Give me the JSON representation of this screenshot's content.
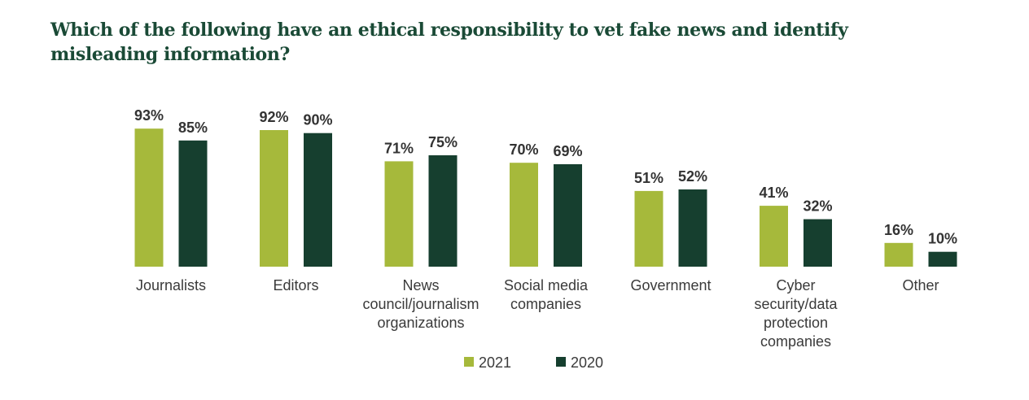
{
  "chart_data": {
    "type": "bar",
    "title": "Which of the following have an ethical responsibility to vet fake news and identify misleading information?",
    "categories": [
      [
        "Journalists"
      ],
      [
        "Editors"
      ],
      [
        "News",
        "council/journalism",
        "organizations"
      ],
      [
        "Social media",
        "companies"
      ],
      [
        "Government"
      ],
      [
        "Cyber",
        "security/data",
        "protection",
        "companies"
      ],
      [
        "Other"
      ]
    ],
    "series": [
      {
        "name": "2021",
        "color": "#a6b93b",
        "values": [
          93,
          92,
          71,
          70,
          51,
          41,
          16
        ],
        "labels": [
          "93%",
          "92%",
          "71%",
          "70%",
          "51%",
          "41%",
          "16%"
        ]
      },
      {
        "name": "2020",
        "color": "#163f2f",
        "values": [
          85,
          90,
          75,
          69,
          52,
          32,
          10
        ],
        "labels": [
          "85%",
          "90%",
          "75%",
          "69%",
          "52%",
          "32%",
          "10%"
        ]
      }
    ],
    "ylim": [
      0,
      100
    ],
    "grid": false,
    "legend_position": "bottom"
  }
}
